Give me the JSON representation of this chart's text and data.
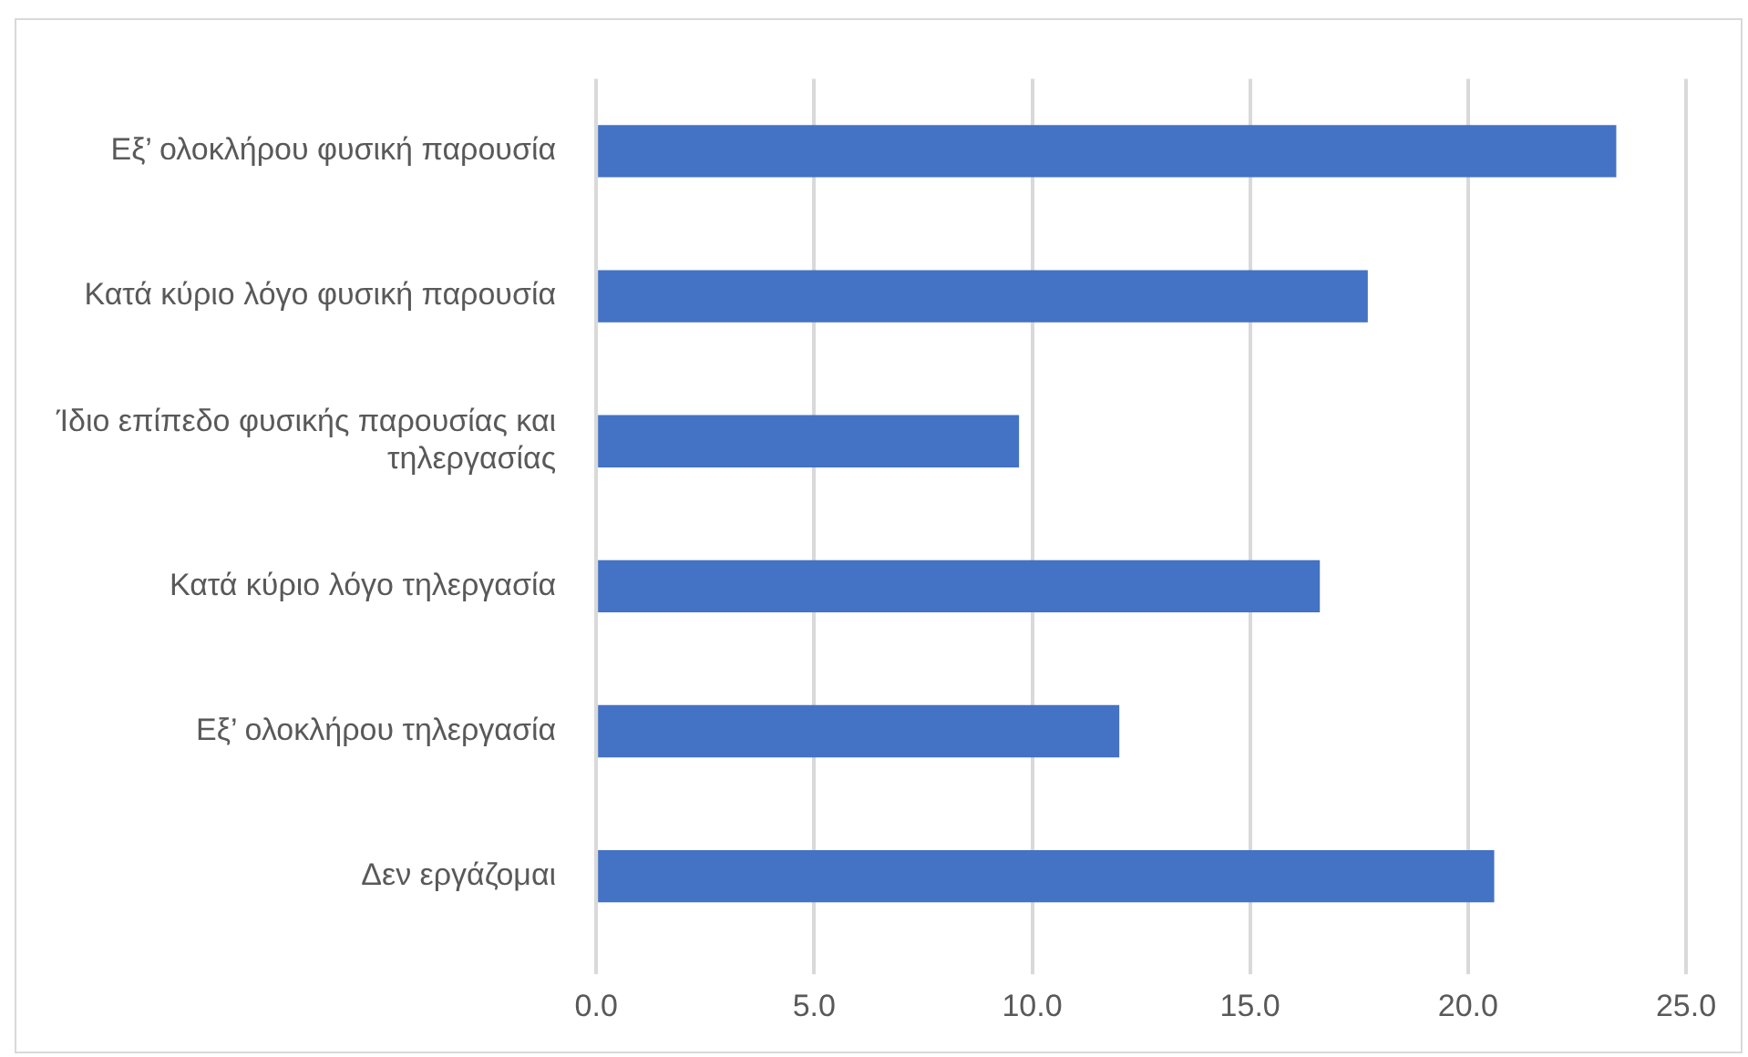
{
  "chart_data": {
    "type": "bar",
    "orientation": "horizontal",
    "categories": [
      "Εξ’ ολοκλήρου φυσική παρουσία",
      "Κατά κύριο λόγο φυσική παρουσία",
      "Ίδιο επίπεδο φυσικής παρουσίας και τηλεργασίας",
      "Κατά κύριο λόγο τηλεργασία",
      "Εξ’ ολοκλήρου τηλεργασία",
      "Δεν εργάζομαι"
    ],
    "values": [
      23.4,
      17.7,
      9.7,
      16.6,
      12.0,
      20.6
    ],
    "color": "#4472c4",
    "xlim": [
      0,
      25
    ],
    "xticks": [
      {
        "value": 0,
        "label": "0.0"
      },
      {
        "value": 5,
        "label": "5.0"
      },
      {
        "value": 10,
        "label": "10.0"
      },
      {
        "value": 15,
        "label": "15.0"
      },
      {
        "value": 20,
        "label": "20.0"
      },
      {
        "value": 25,
        "label": "25.0"
      }
    ],
    "grid": "x",
    "legend": false
  }
}
